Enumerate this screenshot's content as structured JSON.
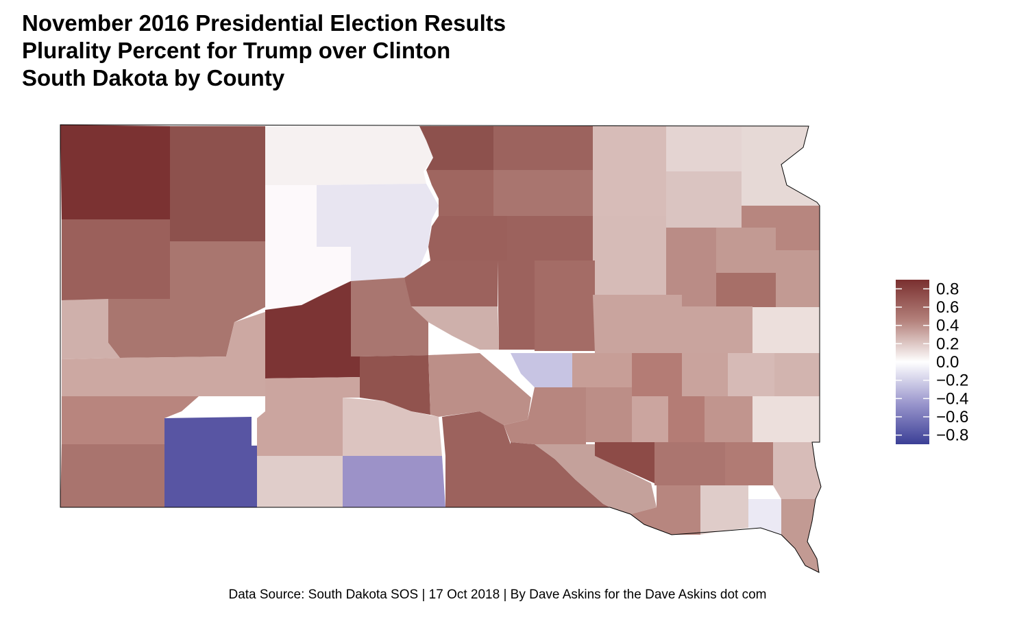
{
  "title": {
    "line1": "November 2016 Presidential Election Results",
    "line2": "Plurality Percent for Trump over Clinton",
    "line3": "South Dakota by County"
  },
  "caption": "Data Source: South Dakota SOS | 17 Oct 2018 | By Dave Askins for the Dave Askins dot com",
  "colors": {
    "high": "#7a2f2f",
    "mid": "#ffffff",
    "low": "#3b3f96",
    "border": "#000000"
  },
  "legend": {
    "ticks": [
      "0.8",
      "0.6",
      "0.4",
      "0.2",
      "0.0",
      "−0.2",
      "−0.4",
      "−0.6",
      "−0.8"
    ],
    "tick_values": [
      0.8,
      0.6,
      0.4,
      0.2,
      0.0,
      -0.2,
      -0.4,
      -0.6,
      -0.8
    ],
    "min": -0.9,
    "max": 0.9
  },
  "chart_data": {
    "type": "choropleth",
    "region": "South Dakota",
    "unit": "county",
    "value_range": [
      -0.9,
      0.9
    ]
  }
}
